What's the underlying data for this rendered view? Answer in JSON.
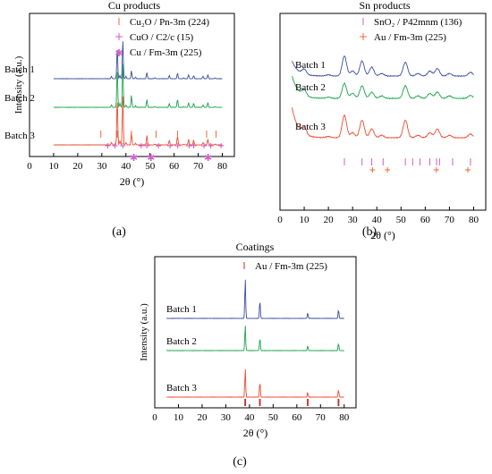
{
  "figure_colors": {
    "batch1": "#3b4fa0",
    "batch2": "#1aa34a",
    "batch3": "#ef4a2f",
    "ref_pink": "#d05fc8",
    "ref_orange": "#ef6a3a",
    "ref_red": "#c62828"
  },
  "chart_data": [
    {
      "type": "line",
      "panel_label": "(a)",
      "title": "Cu products",
      "xlabel": "2θ (°)",
      "ylabel": "Intensity (a.u.)",
      "xlim": [
        0,
        85
      ],
      "xticks": [
        "0",
        "10",
        "20",
        "30",
        "40",
        "50",
        "60",
        "70",
        "80"
      ],
      "series": [
        {
          "name": "Batch 1",
          "color": "#3b4fa0",
          "x": [
            10,
            30,
            34,
            36.4,
            37.5,
            38.7,
            40,
            42.3,
            44,
            48.7,
            52,
            58,
            61.4,
            64,
            66,
            68.1,
            72,
            74,
            77,
            80
          ],
          "y": [
            0,
            0,
            0.3,
            4,
            0.4,
            4.8,
            0.3,
            1.0,
            0.2,
            0.8,
            0.1,
            0.4,
            0.7,
            0.1,
            0.5,
            0.4,
            0.3,
            0.5,
            0.1,
            0
          ]
        },
        {
          "name": "Batch 2",
          "color": "#1aa34a",
          "x": [
            10,
            30,
            34,
            36.4,
            37.5,
            38.7,
            40,
            42.3,
            44,
            48.7,
            52,
            58,
            61.4,
            64,
            66,
            68.1,
            72,
            74,
            77,
            80
          ],
          "y": [
            0,
            0,
            0.3,
            5,
            0.5,
            5.5,
            0.3,
            1.5,
            0.2,
            1.0,
            0.1,
            0.5,
            1.0,
            0.1,
            0.6,
            0.5,
            0.3,
            0.6,
            0.1,
            0
          ]
        },
        {
          "name": "Batch 3",
          "color": "#ef4a2f",
          "x": [
            10,
            30,
            34,
            36.4,
            37.5,
            38.7,
            40,
            42.3,
            44,
            48.7,
            52,
            58,
            61.4,
            64,
            66,
            68.1,
            72,
            74,
            77,
            80
          ],
          "y": [
            0,
            0,
            0.3,
            6,
            0.5,
            6.2,
            0.3,
            1.6,
            0.2,
            1.2,
            0.1,
            0.6,
            1.1,
            0.1,
            0.7,
            0.6,
            0.3,
            0.7,
            0.1,
            0
          ]
        }
      ],
      "reference_patterns": [
        {
          "name": "Cu₂O / Pn-3m (224)",
          "marker": "|",
          "color": "#ef6a3a",
          "positions": [
            29.6,
            36.4,
            42.3,
            52.5,
            61.4,
            73.5,
            77.4
          ]
        },
        {
          "name": "CuO / C2/c (15)",
          "marker": "+",
          "color": "#d05fc8",
          "positions": [
            32.5,
            35.5,
            38.7,
            46.3,
            48.7,
            53.5,
            58.3,
            61.5,
            66.2,
            68.1,
            72.4,
            75.2,
            79.5
          ]
        },
        {
          "name": "Cu / Fm-3m (225)",
          "marker": "*",
          "color": "#d05fc8",
          "positions": [
            43.3,
            50.4,
            74.1
          ]
        }
      ]
    },
    {
      "type": "line",
      "panel_label": "(b)",
      "title": "Sn products",
      "xlabel": "2θ (°)",
      "ylabel": "",
      "xlim": [
        0,
        85
      ],
      "xticks": [
        "0",
        "10",
        "20",
        "30",
        "40",
        "50",
        "60",
        "70",
        "80"
      ],
      "series": [
        {
          "name": "Batch 1",
          "color": "#3b4fa0",
          "x": [
            5,
            10,
            20,
            26.6,
            30,
            33.9,
            37.9,
            42,
            51.8,
            57,
            61.9,
            65,
            70,
            78.7,
            80
          ],
          "y": [
            0.6,
            0.2,
            0.05,
            0.8,
            0.2,
            0.6,
            0.35,
            0.1,
            0.55,
            0.1,
            0.2,
            0.3,
            0.1,
            0.15,
            0.05
          ]
        },
        {
          "name": "Batch 2",
          "color": "#1aa34a",
          "x": [
            5,
            10,
            20,
            26.6,
            30,
            33.9,
            37.9,
            42,
            51.8,
            57,
            61.9,
            65,
            70,
            78.7,
            80
          ],
          "y": [
            0.9,
            0.25,
            0.05,
            0.6,
            0.2,
            0.5,
            0.25,
            0.1,
            0.5,
            0.1,
            0.2,
            0.25,
            0.1,
            0.12,
            0.05
          ]
        },
        {
          "name": "Batch 3",
          "color": "#ef4a2f",
          "x": [
            5,
            10,
            20,
            26.6,
            30,
            33.9,
            37.9,
            42,
            51.8,
            57,
            61.9,
            65,
            70,
            78.7,
            80
          ],
          "y": [
            1.2,
            0.3,
            0.05,
            0.9,
            0.2,
            0.7,
            0.35,
            0.1,
            0.7,
            0.1,
            0.2,
            0.35,
            0.1,
            0.15,
            0.05
          ]
        }
      ],
      "reference_patterns": [
        {
          "name": "SnO₂ / P42mnm (136)",
          "marker": "|",
          "color": "#d05fc8",
          "positions": [
            26.6,
            33.9,
            37.9,
            42.6,
            51.8,
            54.8,
            57.8,
            61.9,
            64.7,
            65.9,
            71.3,
            78.7
          ]
        },
        {
          "name": "Au / Fm-3m (225)",
          "marker": "+",
          "color": "#ef6a3a",
          "positions": [
            38.2,
            44.4,
            64.6,
            77.6
          ]
        }
      ]
    },
    {
      "type": "line",
      "panel_label": "(c)",
      "title": "Coatings",
      "xlabel": "2θ (°)",
      "ylabel": "Intensity (a.u.)",
      "xlim": [
        0,
        85
      ],
      "xticks": [
        "0",
        "10",
        "20",
        "30",
        "40",
        "50",
        "60",
        "70",
        "80"
      ],
      "series": [
        {
          "name": "Batch 1",
          "color": "#3b4fa0",
          "x": [
            5,
            38.2,
            44.4,
            64.6,
            77.6,
            80
          ],
          "y": [
            0,
            5,
            2.3,
            0.7,
            1.1,
            0
          ]
        },
        {
          "name": "Batch 2",
          "color": "#1aa34a",
          "x": [
            5,
            38.2,
            44.4,
            64.6,
            77.6,
            80
          ],
          "y": [
            0,
            3.2,
            1.6,
            0.6,
            0.9,
            0
          ]
        },
        {
          "name": "Batch 3",
          "color": "#ef4a2f",
          "x": [
            5,
            38.2,
            44.4,
            64.6,
            77.6,
            80
          ],
          "y": [
            0,
            3.6,
            1.9,
            0.6,
            0.9,
            0
          ]
        }
      ],
      "reference_patterns": [
        {
          "name": "Au / Fm-3m (225)",
          "marker": "|",
          "color": "#c62828",
          "positions": [
            38.2,
            44.4,
            64.6,
            77.6
          ]
        }
      ]
    }
  ]
}
